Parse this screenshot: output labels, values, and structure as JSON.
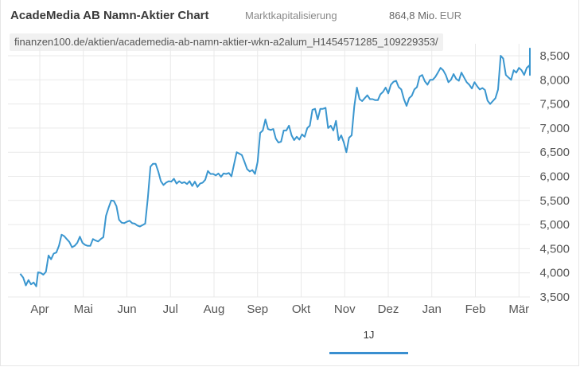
{
  "header": {
    "title": "AcadeMedia AB Namn-Aktier Chart",
    "market_cap_label": "Marktkapitalisierung",
    "market_cap_value": "864,8 Mio.",
    "market_cap_currency": "EUR"
  },
  "url": "finanzen100.de/aktien/academedia-ab-namn-aktier-wkn-a2alum_H1454571285_109229353/",
  "range_tabs": [
    {
      "label": "1J",
      "active": true
    }
  ],
  "colors": {
    "line": "#3a96cf",
    "grid": "#e9e9e9",
    "accent": "#3a8fd0"
  },
  "chart_data": {
    "type": "line",
    "title": "AcadeMedia AB Namn-Aktier Chart",
    "x_tick_labels": [
      "Apr",
      "Mai",
      "Jun",
      "Jul",
      "Aug",
      "Sep",
      "Okt",
      "Nov",
      "Dez",
      "Jan",
      "Feb",
      "Mär"
    ],
    "y_tick_labels": [
      "3,500",
      "4,000",
      "4,500",
      "5,000",
      "5,500",
      "6,000",
      "6,500",
      "7,000",
      "7,500",
      "8,000",
      "8,500"
    ],
    "ylim": [
      3500,
      8500
    ],
    "x_months_range": [
      -0.45,
      11.25
    ],
    "grid": true,
    "series": [
      {
        "points": [
          [
            -0.45,
            3980
          ],
          [
            -0.38,
            3900
          ],
          [
            -0.32,
            3740
          ],
          [
            -0.26,
            3850
          ],
          [
            -0.2,
            3760
          ],
          [
            -0.14,
            3800
          ],
          [
            -0.08,
            3720
          ],
          [
            -0.04,
            4010
          ],
          [
            0.02,
            4000
          ],
          [
            0.08,
            3960
          ],
          [
            0.14,
            4020
          ],
          [
            0.2,
            4360
          ],
          [
            0.26,
            4280
          ],
          [
            0.32,
            4400
          ],
          [
            0.38,
            4420
          ],
          [
            0.44,
            4560
          ],
          [
            0.5,
            4790
          ],
          [
            0.56,
            4760
          ],
          [
            0.62,
            4700
          ],
          [
            0.68,
            4640
          ],
          [
            0.74,
            4530
          ],
          [
            0.8,
            4560
          ],
          [
            0.86,
            4620
          ],
          [
            0.92,
            4750
          ],
          [
            0.98,
            4620
          ],
          [
            1.04,
            4580
          ],
          [
            1.1,
            4560
          ],
          [
            1.16,
            4560
          ],
          [
            1.22,
            4700
          ],
          [
            1.28,
            4670
          ],
          [
            1.34,
            4650
          ],
          [
            1.4,
            4700
          ],
          [
            1.46,
            4740
          ],
          [
            1.52,
            5180
          ],
          [
            1.58,
            5350
          ],
          [
            1.64,
            5500
          ],
          [
            1.7,
            5490
          ],
          [
            1.76,
            5380
          ],
          [
            1.82,
            5100
          ],
          [
            1.88,
            5040
          ],
          [
            1.94,
            5030
          ],
          [
            2.0,
            5060
          ],
          [
            2.06,
            5080
          ],
          [
            2.12,
            5030
          ],
          [
            2.18,
            5020
          ],
          [
            2.24,
            4980
          ],
          [
            2.3,
            4960
          ],
          [
            2.36,
            4990
          ],
          [
            2.42,
            5020
          ],
          [
            2.48,
            5550
          ],
          [
            2.54,
            6200
          ],
          [
            2.6,
            6260
          ],
          [
            2.66,
            6260
          ],
          [
            2.72,
            6100
          ],
          [
            2.78,
            5900
          ],
          [
            2.84,
            5820
          ],
          [
            2.9,
            5870
          ],
          [
            2.96,
            5900
          ],
          [
            3.02,
            5890
          ],
          [
            3.08,
            5950
          ],
          [
            3.14,
            5850
          ],
          [
            3.2,
            5900
          ],
          [
            3.26,
            5860
          ],
          [
            3.32,
            5880
          ],
          [
            3.38,
            5840
          ],
          [
            3.44,
            5900
          ],
          [
            3.5,
            5800
          ],
          [
            3.56,
            5890
          ],
          [
            3.62,
            5780
          ],
          [
            3.68,
            5850
          ],
          [
            3.74,
            5870
          ],
          [
            3.8,
            5930
          ],
          [
            3.86,
            6110
          ],
          [
            3.92,
            6050
          ],
          [
            3.98,
            6050
          ],
          [
            4.04,
            6020
          ],
          [
            4.1,
            6060
          ],
          [
            4.16,
            5990
          ],
          [
            4.22,
            6060
          ],
          [
            4.28,
            6050
          ],
          [
            4.34,
            6070
          ],
          [
            4.4,
            6000
          ],
          [
            4.46,
            6250
          ],
          [
            4.52,
            6500
          ],
          [
            4.58,
            6470
          ],
          [
            4.64,
            6440
          ],
          [
            4.7,
            6300
          ],
          [
            4.76,
            6150
          ],
          [
            4.82,
            6100
          ],
          [
            4.88,
            6130
          ],
          [
            4.94,
            6050
          ],
          [
            5.0,
            6300
          ],
          [
            5.06,
            6900
          ],
          [
            5.12,
            6950
          ],
          [
            5.18,
            7180
          ],
          [
            5.24,
            6980
          ],
          [
            5.3,
            6960
          ],
          [
            5.36,
            6980
          ],
          [
            5.42,
            6780
          ],
          [
            5.48,
            6700
          ],
          [
            5.54,
            6720
          ],
          [
            5.6,
            6950
          ],
          [
            5.66,
            6950
          ],
          [
            5.72,
            7050
          ],
          [
            5.78,
            6850
          ],
          [
            5.84,
            6750
          ],
          [
            5.9,
            6820
          ],
          [
            5.96,
            6760
          ],
          [
            6.02,
            6870
          ],
          [
            6.08,
            6820
          ],
          [
            6.14,
            7000
          ],
          [
            6.2,
            7050
          ],
          [
            6.26,
            7380
          ],
          [
            6.32,
            7400
          ],
          [
            6.38,
            7180
          ],
          [
            6.44,
            7400
          ],
          [
            6.5,
            7400
          ],
          [
            6.56,
            7420
          ],
          [
            6.62,
            7000
          ],
          [
            6.68,
            7050
          ],
          [
            6.74,
            6950
          ],
          [
            6.8,
            7150
          ],
          [
            6.86,
            6750
          ],
          [
            6.92,
            6850
          ],
          [
            6.98,
            6700
          ],
          [
            7.04,
            6500
          ],
          [
            7.1,
            6800
          ],
          [
            7.16,
            6850
          ],
          [
            7.22,
            7450
          ],
          [
            7.28,
            7840
          ],
          [
            7.34,
            7600
          ],
          [
            7.4,
            7560
          ],
          [
            7.46,
            7620
          ],
          [
            7.52,
            7680
          ],
          [
            7.58,
            7600
          ],
          [
            7.64,
            7600
          ],
          [
            7.7,
            7580
          ],
          [
            7.76,
            7580
          ],
          [
            7.82,
            7700
          ],
          [
            7.88,
            7750
          ],
          [
            7.94,
            7840
          ],
          [
            8.0,
            7720
          ],
          [
            8.06,
            7900
          ],
          [
            8.12,
            7960
          ],
          [
            8.18,
            7980
          ],
          [
            8.24,
            7850
          ],
          [
            8.3,
            7800
          ],
          [
            8.36,
            7600
          ],
          [
            8.42,
            7460
          ],
          [
            8.48,
            7620
          ],
          [
            8.54,
            7670
          ],
          [
            8.6,
            7800
          ],
          [
            8.66,
            7850
          ],
          [
            8.72,
            8070
          ],
          [
            8.78,
            8100
          ],
          [
            8.84,
            7970
          ],
          [
            8.9,
            7900
          ],
          [
            8.96,
            8000
          ],
          [
            9.02,
            8000
          ],
          [
            9.08,
            8060
          ],
          [
            9.14,
            8150
          ],
          [
            9.2,
            8250
          ],
          [
            9.26,
            8200
          ],
          [
            9.32,
            8100
          ],
          [
            9.38,
            7950
          ],
          [
            9.44,
            8000
          ],
          [
            9.5,
            8120
          ],
          [
            9.56,
            8020
          ],
          [
            9.62,
            7980
          ],
          [
            9.68,
            8150
          ],
          [
            9.74,
            8050
          ],
          [
            9.8,
            7950
          ],
          [
            9.86,
            7900
          ],
          [
            9.92,
            7820
          ],
          [
            9.98,
            7950
          ],
          [
            10.04,
            7870
          ],
          [
            10.1,
            7800
          ],
          [
            10.16,
            7830
          ],
          [
            10.22,
            7790
          ],
          [
            10.28,
            7570
          ],
          [
            10.34,
            7500
          ],
          [
            10.4,
            7560
          ],
          [
            10.46,
            7620
          ],
          [
            10.52,
            7800
          ],
          [
            10.58,
            8500
          ],
          [
            10.64,
            8440
          ],
          [
            10.7,
            8100
          ],
          [
            10.76,
            8050
          ],
          [
            10.82,
            8000
          ],
          [
            10.88,
            8200
          ],
          [
            10.94,
            8150
          ],
          [
            11.0,
            8250
          ],
          [
            11.06,
            8200
          ],
          [
            11.12,
            8100
          ],
          [
            11.18,
            8250
          ],
          [
            11.24,
            8300
          ],
          [
            11.3,
            8200
          ],
          [
            11.36,
            8100
          ],
          [
            11.42,
            8150
          ],
          [
            11.48,
            8300
          ],
          [
            11.54,
            8250
          ],
          [
            11.6,
            8150
          ],
          [
            11.66,
            8180
          ],
          [
            11.72,
            8400
          ],
          [
            11.78,
            8650
          ],
          [
            11.84,
            8550
          ],
          [
            11.9,
            8200
          ],
          [
            11.96,
            8220
          ],
          [
            12.02,
            8150
          ],
          [
            12.08,
            8130
          ]
        ]
      }
    ]
  }
}
